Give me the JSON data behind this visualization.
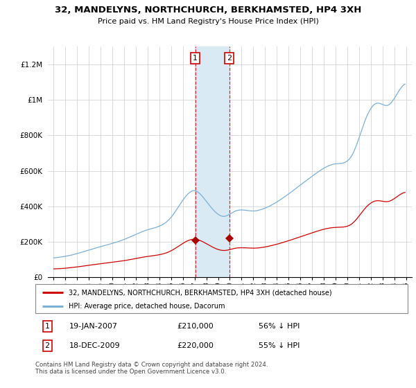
{
  "title": "32, MANDELYNS, NORTHCHURCH, BERKHAMSTED, HP4 3XH",
  "subtitle": "Price paid vs. HM Land Registry's House Price Index (HPI)",
  "legend_line1": "32, MANDELYNS, NORTHCHURCH, BERKHAMSTED, HP4 3XH (detached house)",
  "legend_line2": "HPI: Average price, detached house, Dacorum",
  "sale1_date": "19-JAN-2007",
  "sale1_price": 210000,
  "sale1_pct": "56% ↓ HPI",
  "sale2_date": "18-DEC-2009",
  "sale2_price": 220000,
  "sale2_pct": "55% ↓ HPI",
  "footnote": "Contains HM Land Registry data © Crown copyright and database right 2024.\nThis data is licensed under the Open Government Licence v3.0.",
  "property_color": "#cc0000",
  "hpi_color": "#7bafd4",
  "shade_color": "#daeaf5",
  "sale_marker_color": "#aa0000",
  "ylim": [
    0,
    1300000
  ],
  "yticks": [
    0,
    200000,
    400000,
    600000,
    800000,
    1000000,
    1200000
  ],
  "ytick_labels": [
    "£0",
    "£200K",
    "£400K",
    "£600K",
    "£800K",
    "£1M",
    "£1.2M"
  ],
  "sale1_year": 2007.05,
  "sale2_year": 2009.96,
  "background_color": "#f0f4f8"
}
